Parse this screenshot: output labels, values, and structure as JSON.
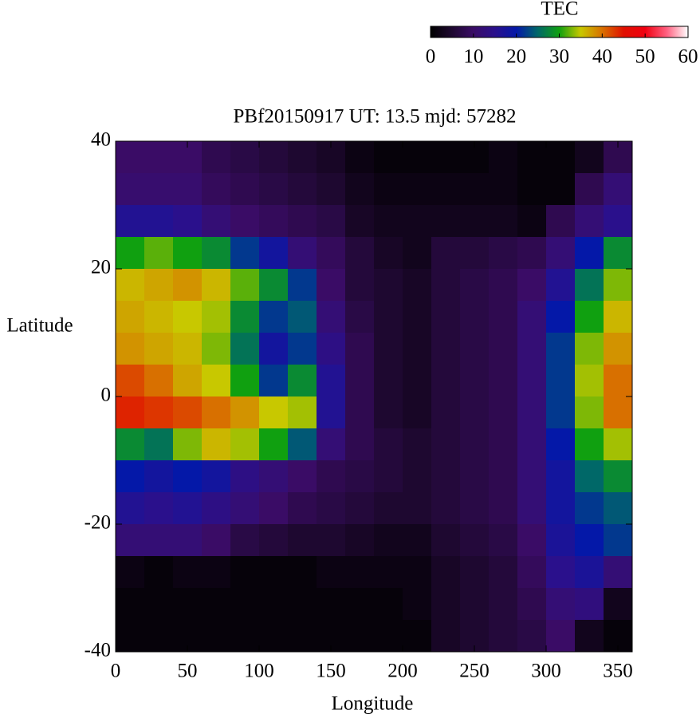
{
  "chart_data": {
    "type": "heatmap",
    "title": "PBf20150917  UT: 13.5  mjd: 57282",
    "xlabel": "Longitude",
    "ylabel": "Latitude",
    "colorbar_label": "TEC",
    "x": [
      10,
      30,
      50,
      70,
      90,
      110,
      130,
      150,
      170,
      190,
      210,
      230,
      250,
      270,
      290,
      310,
      330,
      350
    ],
    "y": [
      37.5,
      32.5,
      27.5,
      22.5,
      17.5,
      12.5,
      7.5,
      2.5,
      -2.5,
      -7.5,
      -12.5,
      -17.5,
      -22.5,
      -27.5,
      -32.5,
      -37.5
    ],
    "z": [
      [
        10,
        10,
        10,
        8,
        7,
        6,
        5,
        4,
        2,
        1,
        1,
        1,
        1,
        2,
        1,
        1,
        3,
        8
      ],
      [
        11,
        11,
        11,
        9,
        8,
        7,
        6,
        5,
        3,
        2,
        2,
        2,
        2,
        2,
        1,
        1,
        8,
        12
      ],
      [
        16,
        16,
        15,
        12,
        10,
        9,
        8,
        7,
        4,
        3,
        3,
        3,
        3,
        3,
        2,
        8,
        12,
        15
      ],
      [
        30,
        32,
        30,
        28,
        22,
        18,
        12,
        9,
        6,
        4,
        3,
        6,
        6,
        7,
        8,
        12,
        20,
        28
      ],
      [
        36,
        37,
        38,
        36,
        32,
        28,
        22,
        10,
        6,
        5,
        4,
        6,
        7,
        8,
        10,
        16,
        26,
        33
      ],
      [
        37,
        36,
        35,
        34,
        28,
        22,
        24,
        12,
        7,
        5,
        4,
        6,
        7,
        8,
        12,
        20,
        30,
        36
      ],
      [
        38,
        37,
        36,
        33,
        26,
        18,
        22,
        14,
        8,
        5,
        4,
        6,
        7,
        8,
        12,
        22,
        33,
        38
      ],
      [
        42,
        40,
        37,
        35,
        30,
        22,
        28,
        16,
        8,
        5,
        4,
        6,
        7,
        8,
        12,
        22,
        34,
        40
      ],
      [
        44,
        43,
        42,
        40,
        38,
        35,
        34,
        16,
        8,
        5,
        4,
        6,
        7,
        8,
        12,
        22,
        33,
        40
      ],
      [
        28,
        26,
        33,
        36,
        34,
        30,
        24,
        12,
        8,
        6,
        5,
        6,
        7,
        8,
        12,
        20,
        30,
        34
      ],
      [
        20,
        18,
        20,
        18,
        14,
        12,
        10,
        8,
        7,
        6,
        5,
        6,
        7,
        8,
        12,
        18,
        25,
        28
      ],
      [
        16,
        15,
        16,
        14,
        12,
        10,
        8,
        7,
        6,
        5,
        5,
        6,
        7,
        8,
        12,
        18,
        22,
        24
      ],
      [
        12,
        12,
        12,
        10,
        7,
        6,
        5,
        5,
        4,
        3,
        3,
        5,
        6,
        7,
        10,
        17,
        20,
        22
      ],
      [
        2,
        1,
        2,
        2,
        1,
        1,
        1,
        2,
        2,
        2,
        2,
        4,
        5,
        6,
        9,
        15,
        17,
        12
      ],
      [
        1,
        1,
        1,
        1,
        1,
        1,
        1,
        1,
        1,
        1,
        2,
        4,
        5,
        6,
        8,
        12,
        13,
        3
      ],
      [
        1,
        1,
        1,
        1,
        1,
        1,
        1,
        1,
        1,
        1,
        1,
        4,
        5,
        6,
        7,
        10,
        3,
        1
      ]
    ],
    "xlim": [
      0,
      360
    ],
    "ylim": [
      -40,
      40
    ],
    "xticks": [
      0,
      50,
      100,
      150,
      200,
      250,
      300,
      350
    ],
    "yticks": [
      -40,
      -20,
      0,
      20,
      40
    ],
    "zlim": [
      0,
      60
    ],
    "zticks": [
      0,
      10,
      20,
      30,
      40,
      50,
      60
    ],
    "colormap": [
      "#000000",
      "#1e0830",
      "#3a0c66",
      "#2a108c",
      "#0418a8",
      "#006868",
      "#10a010",
      "#c8c800",
      "#d87000",
      "#e01000",
      "#f00010",
      "#ff6080",
      "#ffffff"
    ]
  }
}
